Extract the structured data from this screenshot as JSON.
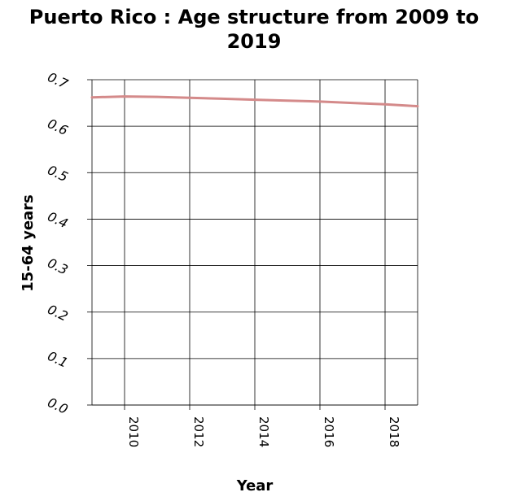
{
  "chart_data": {
    "type": "line",
    "title": "Puerto Rico : Age structure from 2009 to 2019",
    "xlabel": "Year",
    "ylabel": "15-64 years",
    "x": [
      2009,
      2010,
      2011,
      2012,
      2013,
      2014,
      2015,
      2016,
      2017,
      2018,
      2019
    ],
    "series": [
      {
        "values": [
          0.662,
          0.664,
          0.663,
          0.661,
          0.659,
          0.657,
          0.655,
          0.653,
          0.65,
          0.647,
          0.643
        ]
      }
    ],
    "xlim": [
      2009,
      2019
    ],
    "ylim": [
      0,
      0.7
    ],
    "x_ticks": [
      "2010",
      "2012",
      "2014",
      "2016",
      "2018"
    ],
    "x_tick_values": [
      2010,
      2012,
      2014,
      2016,
      2018
    ],
    "y_ticks": [
      "0.0",
      "0.1",
      "0.2",
      "0.3",
      "0.4",
      "0.5",
      "0.6",
      "0.7"
    ],
    "y_tick_values": [
      0,
      0.1,
      0.2,
      0.3,
      0.4,
      0.5,
      0.6,
      0.7
    ],
    "grid": true,
    "line_color": "#d48a8a"
  }
}
